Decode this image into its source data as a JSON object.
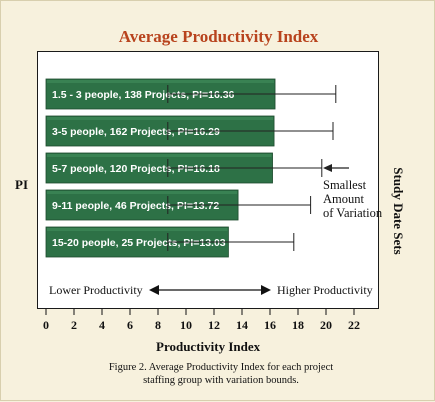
{
  "chart_data": {
    "type": "bar",
    "orientation": "horizontal",
    "title": "Average Productivity Index",
    "xlabel": "Productivity Index",
    "ylabel": "PI",
    "right_label": "Study Date Sets",
    "xlim": [
      0,
      23
    ],
    "xticks": [
      "0",
      "2",
      "4",
      "6",
      "8",
      "10",
      "12",
      "14",
      "16",
      "18",
      "20",
      "22"
    ],
    "categories": [
      "1.5 - 3 people, 138 Projects, PI=16.36",
      "3-5 people, 162 Projects, PI=16.29",
      "5-7 people, 120 Projects, PI=16.18",
      "9-11 people, 46 Projects, PI=13.72",
      "15-20 people, 25 Projects, PI=13.03"
    ],
    "values": [
      16.36,
      16.29,
      16.18,
      13.72,
      13.03
    ],
    "error_low": [
      8.7,
      8.7,
      8.7,
      8.7,
      8.7
    ],
    "error_high": [
      20.7,
      20.5,
      19.7,
      18.9,
      17.7
    ],
    "annotation": [
      "Smallest",
      "Amount",
      "of Variation"
    ],
    "lower_label": "Lower Productivity",
    "higher_label": "Higher Productivity",
    "bar_color": "#2d7146",
    "title_color": "#b8431d"
  },
  "caption": {
    "line1": "Figure 2.  Average Productivity Index for each project",
    "line2": "staffing group with variation bounds."
  }
}
